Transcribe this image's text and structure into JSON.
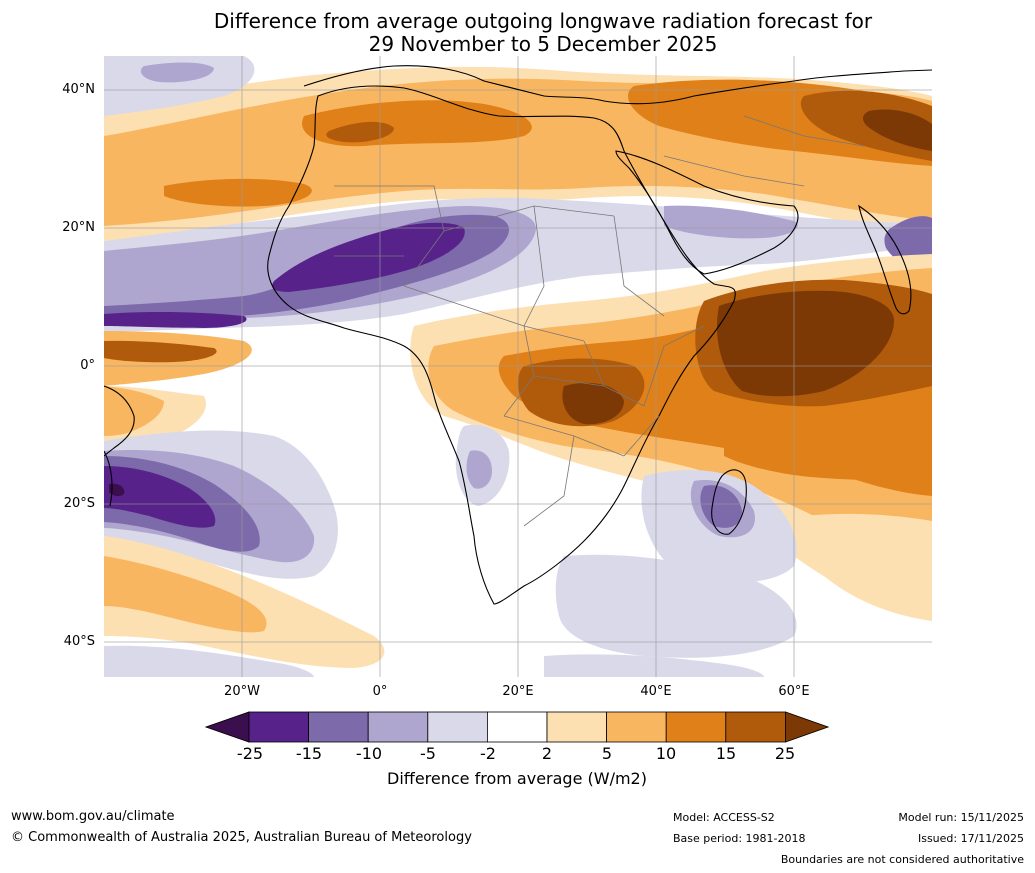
{
  "title": {
    "line1": "Difference from average outgoing longwave radiation forecast for",
    "line2": "29 November to 5 December 2025"
  },
  "map": {
    "lat_labels": [
      "40°N",
      "20°N",
      "0°",
      "20°S",
      "40°S"
    ],
    "lon_labels": [
      "20°W",
      "0°",
      "20°E",
      "40°E",
      "60°E"
    ],
    "lat_values": [
      40,
      20,
      0,
      -20,
      -40
    ],
    "lon_values": [
      -20,
      0,
      20,
      40,
      60
    ],
    "extent": {
      "lon_min": -40,
      "lon_max": 80,
      "lat_min": -45,
      "lat_max": 45
    },
    "regions": [
      {
        "name": "north-africa-warm",
        "level": 10,
        "lon": [
          -40,
          80
        ],
        "lat": [
          25,
          40
        ]
      },
      {
        "name": "sahel-cold",
        "level": -15,
        "lon": [
          -20,
          10
        ],
        "lat": [
          13,
          20
        ]
      },
      {
        "name": "east-africa-indian-ocean-warm",
        "level": 15,
        "lon": [
          25,
          80
        ],
        "lat": [
          -10,
          7
        ]
      },
      {
        "name": "south-atlantic-cold",
        "level": -15,
        "lon": [
          -40,
          -20
        ],
        "lat": [
          -25,
          -15
        ]
      }
    ]
  },
  "colorbar": {
    "colors": [
      "#3b0f4d",
      "#57238a",
      "#7d6aaa",
      "#afa6d0",
      "#d9d9ea",
      "#ffffff",
      "#fde0b2",
      "#f9b660",
      "#e08018",
      "#b05a0c",
      "#7c3905"
    ],
    "ticks": [
      "-25",
      "-15",
      "-10",
      "-5",
      "-2",
      "2",
      "5",
      "10",
      "15",
      "25"
    ],
    "label": "Difference from average (W/m2)"
  },
  "footer": {
    "website": "www.bom.gov.au/climate",
    "copyright": "© Commonwealth of Australia 2025, Australian Bureau of Meteorology",
    "model": "Model: ACCESS-S2",
    "base_period": "Base period: 1981-2018",
    "model_run": "Model run: 15/11/2025",
    "issued": "Issued: 17/11/2025",
    "disclaimer": "Boundaries are not considered authoritative"
  }
}
